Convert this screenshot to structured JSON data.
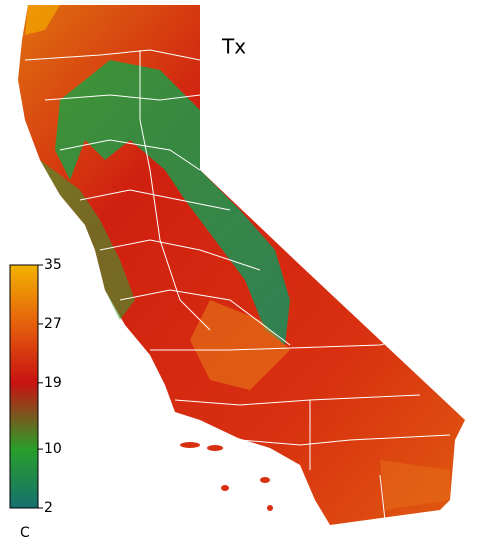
{
  "map": {
    "title": "Tx",
    "colorbar": {
      "label": "C",
      "lim": [
        2,
        35
      ],
      "ticks": [
        2,
        10,
        19,
        27,
        35
      ],
      "colors": [
        "#16706e",
        "#2a9e2a",
        "#c81212",
        "#e5600c",
        "#f2b200"
      ]
    }
  }
}
